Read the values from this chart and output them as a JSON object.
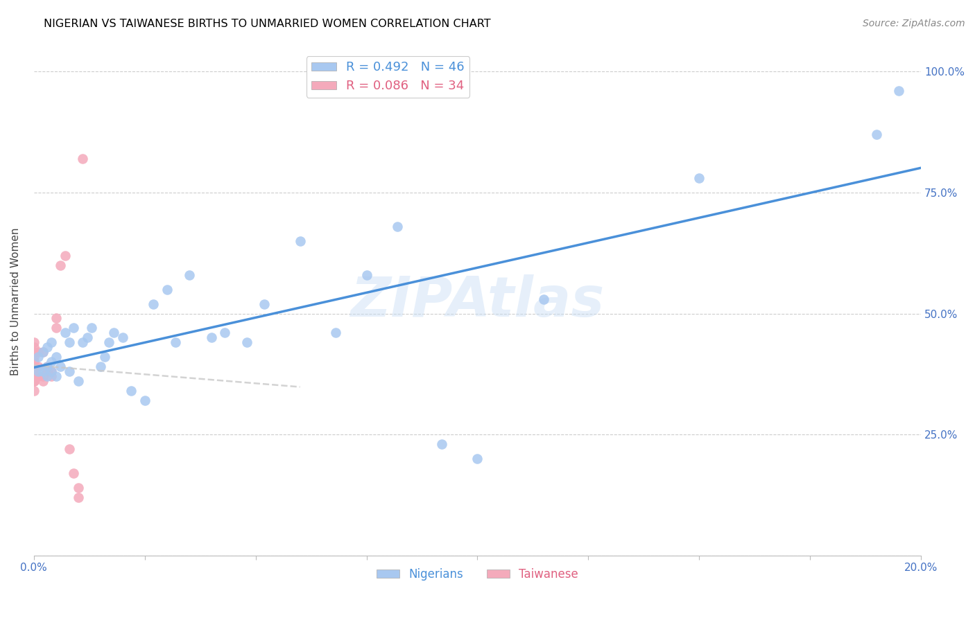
{
  "title": "NIGERIAN VS TAIWANESE BIRTHS TO UNMARRIED WOMEN CORRELATION CHART",
  "source": "Source: ZipAtlas.com",
  "ylabel": "Births to Unmarried Women",
  "xlim": [
    0.0,
    0.2
  ],
  "ylim": [
    0.0,
    1.05
  ],
  "ytick_positions": [
    0.0,
    0.25,
    0.5,
    0.75,
    1.0
  ],
  "ytick_labels": [
    "",
    "25.0%",
    "50.0%",
    "75.0%",
    "100.0%"
  ],
  "xtick_positions": [
    0.0,
    0.025,
    0.05,
    0.075,
    0.1,
    0.125,
    0.15,
    0.175,
    0.2
  ],
  "xtick_labels": [
    "0.0%",
    "",
    "",
    "",
    "",
    "",
    "",
    "",
    "20.0%"
  ],
  "nigerian_R": 0.492,
  "nigerian_N": 46,
  "taiwanese_R": 0.086,
  "taiwanese_N": 34,
  "nigerian_color": "#A8C8F0",
  "taiwanese_color": "#F4AABB",
  "nigerian_line_color": "#4A90D9",
  "taiwanese_line_color": "#C8C8C8",
  "watermark": "ZIPAtlas",
  "nigerian_x": [
    0.001,
    0.001,
    0.002,
    0.002,
    0.003,
    0.003,
    0.003,
    0.004,
    0.004,
    0.004,
    0.005,
    0.005,
    0.006,
    0.007,
    0.008,
    0.008,
    0.009,
    0.01,
    0.011,
    0.012,
    0.013,
    0.015,
    0.016,
    0.017,
    0.018,
    0.02,
    0.022,
    0.025,
    0.027,
    0.03,
    0.032,
    0.035,
    0.04,
    0.043,
    0.048,
    0.052,
    0.06,
    0.068,
    0.075,
    0.082,
    0.092,
    0.1,
    0.115,
    0.15,
    0.19,
    0.195
  ],
  "nigerian_y": [
    0.38,
    0.41,
    0.38,
    0.42,
    0.37,
    0.39,
    0.43,
    0.38,
    0.4,
    0.44,
    0.37,
    0.41,
    0.39,
    0.46,
    0.38,
    0.44,
    0.47,
    0.36,
    0.44,
    0.45,
    0.47,
    0.39,
    0.41,
    0.44,
    0.46,
    0.45,
    0.34,
    0.32,
    0.52,
    0.55,
    0.44,
    0.58,
    0.45,
    0.46,
    0.44,
    0.52,
    0.65,
    0.46,
    0.58,
    0.68,
    0.23,
    0.2,
    0.53,
    0.78,
    0.87,
    0.96
  ],
  "taiwanese_x": [
    0.0,
    0.0,
    0.0,
    0.0,
    0.0,
    0.0,
    0.0,
    0.0,
    0.0,
    0.0,
    0.0,
    0.0,
    0.0,
    0.0,
    0.0,
    0.001,
    0.001,
    0.001,
    0.002,
    0.002,
    0.002,
    0.003,
    0.003,
    0.004,
    0.004,
    0.005,
    0.005,
    0.006,
    0.007,
    0.008,
    0.009,
    0.01,
    0.01,
    0.011
  ],
  "taiwanese_y": [
    0.34,
    0.36,
    0.37,
    0.38,
    0.38,
    0.39,
    0.4,
    0.41,
    0.42,
    0.43,
    0.44,
    0.36,
    0.37,
    0.38,
    0.36,
    0.37,
    0.39,
    0.42,
    0.36,
    0.37,
    0.42,
    0.38,
    0.39,
    0.37,
    0.38,
    0.47,
    0.49,
    0.6,
    0.62,
    0.22,
    0.17,
    0.12,
    0.14,
    0.82
  ]
}
